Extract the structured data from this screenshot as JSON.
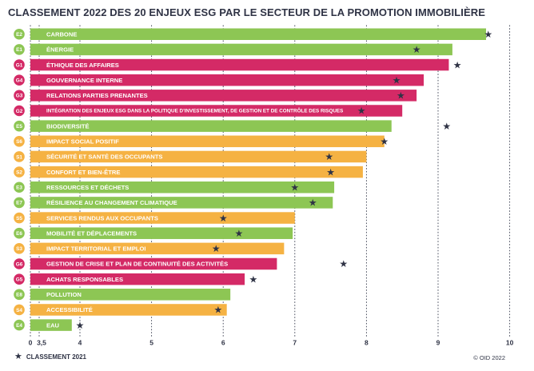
{
  "chart_data": {
    "type": "bar",
    "orientation": "horizontal",
    "title": "CLASSEMENT 2022 DES 20 ENJEUX ESG PAR LE SECTEUR DE LA PROMOTION IMMOBILIÈRE",
    "xlim": [
      3.5,
      10
    ],
    "x_ticks": [
      "0",
      "3,5",
      "4",
      "5",
      "6",
      "7",
      "8",
      "9",
      "10"
    ],
    "grid": "vertical dotted",
    "colors": {
      "E": "#8dc654",
      "G": "#d42a66",
      "S": "#f5b243"
    },
    "legend": {
      "symbol": "★",
      "label": "CLASSEMENT 2021",
      "position": "bottom-left"
    },
    "source": "© OID 2022",
    "rows": [
      {
        "code": "E2",
        "group": "E",
        "label": "CARBONE",
        "value_2022": 9.67,
        "value_2021": 9.7
      },
      {
        "code": "E1",
        "group": "E",
        "label": "ÉNERGIE",
        "value_2022": 9.2,
        "value_2021": 8.7
      },
      {
        "code": "G1",
        "group": "G",
        "label": "ÉTHIQUE DES AFFAIRES",
        "value_2022": 9.15,
        "value_2021": 9.27
      },
      {
        "code": "G4",
        "group": "G",
        "label": "GOUVERNANCE INTERNE",
        "value_2022": 8.8,
        "value_2021": 8.42
      },
      {
        "code": "G3",
        "group": "G",
        "label": "RELATIONS PARTIES PRENANTES",
        "value_2022": 8.7,
        "value_2021": 8.48
      },
      {
        "code": "G2",
        "group": "G",
        "label": "INTÉGRATION DES ENJEUX ESG DANS LA POLITIQUE D'INVESTISSEMENT, DE GESTION ET DE CONTRÔLE DES RISQUES",
        "value_2022": 8.5,
        "value_2021": 7.93
      },
      {
        "code": "E5",
        "group": "E",
        "label": "BIODIVERSITÉ",
        "value_2022": 8.35,
        "value_2021": 9.12
      },
      {
        "code": "S6",
        "group": "S",
        "label": "IMPACT SOCIAL POSITIF",
        "value_2022": 8.25,
        "value_2021": 8.25
      },
      {
        "code": "S1",
        "group": "S",
        "label": "SÉCURITÉ ET SANTÉ DES OCCUPANTS",
        "value_2022": 8.0,
        "value_2021": 7.48
      },
      {
        "code": "S2",
        "group": "S",
        "label": "CONFORT ET BIEN-ÊTRE",
        "value_2022": 7.95,
        "value_2021": 7.5
      },
      {
        "code": "E3",
        "group": "E",
        "label": "RESSOURCES ET DÉCHETS",
        "value_2022": 7.55,
        "value_2021": 7.0
      },
      {
        "code": "E7",
        "group": "E",
        "label": "RÉSILIENCE AU CHANGEMENT CLIMATIQUE",
        "value_2022": 7.53,
        "value_2021": 7.25
      },
      {
        "code": "S5",
        "group": "S",
        "label": "SERVICES RENDUS AUX OCCUPANTS",
        "value_2022": 7.0,
        "value_2021": 6.0
      },
      {
        "code": "E6",
        "group": "E",
        "label": "MOBILITÉ ET DÉPLACEMENTS",
        "value_2022": 6.97,
        "value_2021": 6.22
      },
      {
        "code": "S3",
        "group": "S",
        "label": "IMPACT TERRITORIAL ET EMPLOI",
        "value_2022": 6.85,
        "value_2021": 5.9
      },
      {
        "code": "G6",
        "group": "G",
        "label": "GESTION DE CRISE ET PLAN DE CONTINUITÉ DES ACTIVITÉS",
        "value_2022": 6.75,
        "value_2021": 7.68
      },
      {
        "code": "G5",
        "group": "G",
        "label": "ACHATS RESPONSABLES",
        "value_2022": 6.3,
        "value_2021": 6.42
      },
      {
        "code": "E8",
        "group": "E",
        "label": "POLLUTION",
        "value_2022": 6.1,
        "value_2021": null
      },
      {
        "code": "S4",
        "group": "S",
        "label": "ACCESSIBILITÉ",
        "value_2022": 6.05,
        "value_2021": 5.93
      },
      {
        "code": "E4",
        "group": "E",
        "label": "EAU",
        "value_2022": 3.9,
        "value_2021": 4.0
      }
    ]
  }
}
